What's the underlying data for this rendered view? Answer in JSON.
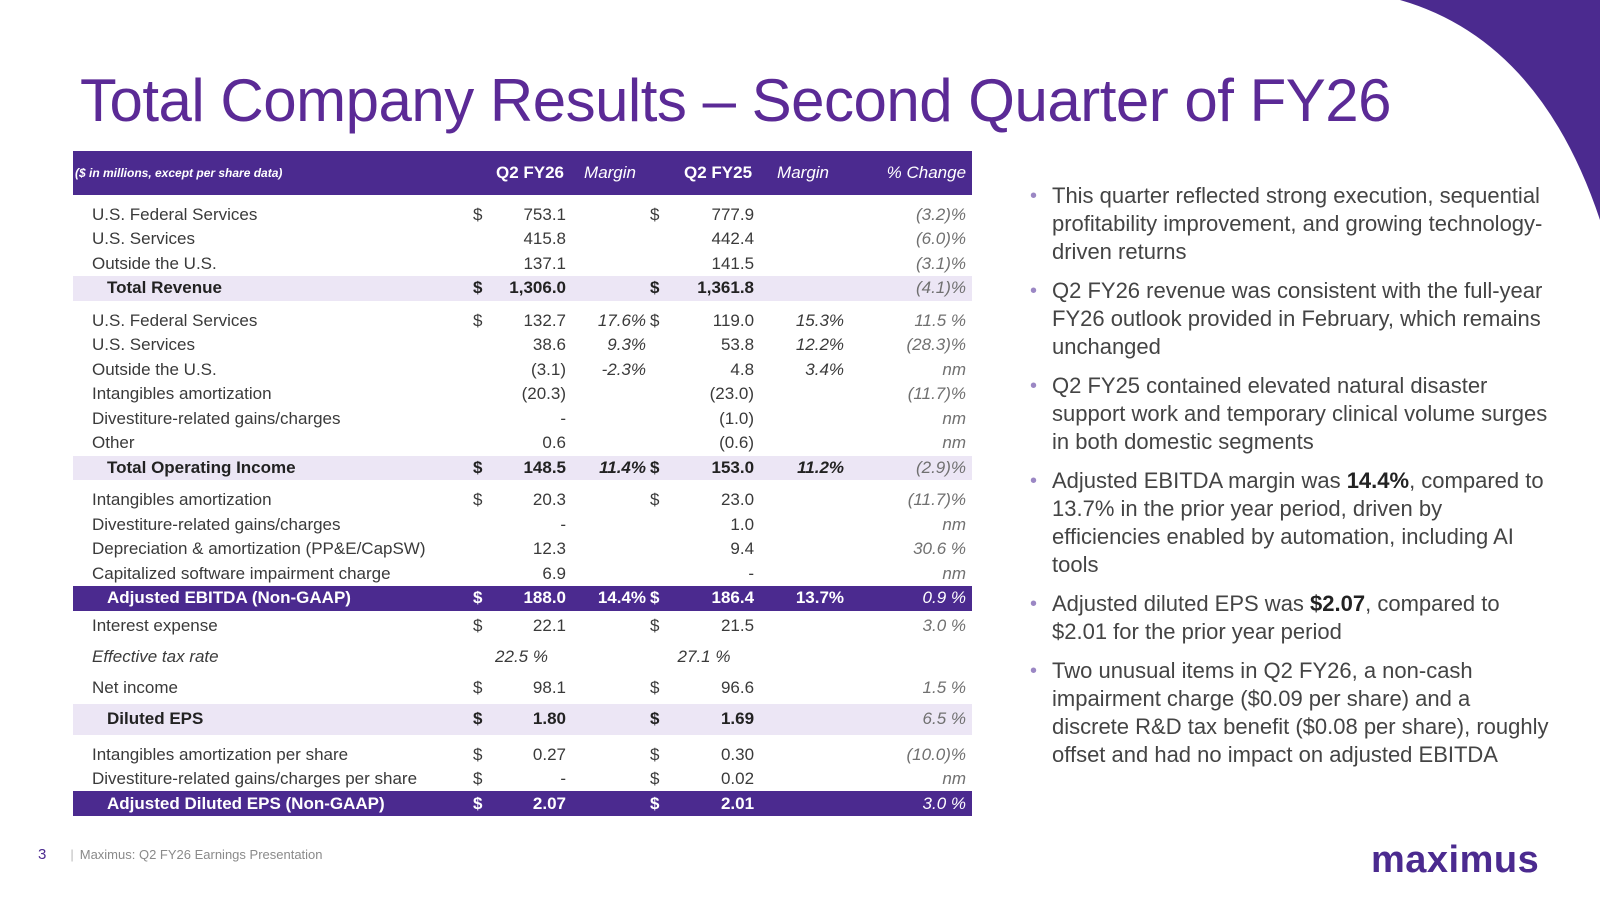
{
  "title": "Total Company Results – Second Quarter of FY26",
  "table": {
    "header": {
      "label": "($ in millions, except per share data)",
      "q2fy26": "Q2 FY26",
      "margin1": "Margin",
      "q2fy25": "Q2 FY25",
      "margin2": "Margin",
      "change": "% Change"
    },
    "rows": [
      {
        "label": "U.S. Federal Services",
        "d1": "$",
        "v1": "753.1",
        "m1": "",
        "d2": "$",
        "v2": "777.9",
        "m2": "",
        "chg": "(3.2)%"
      },
      {
        "label": "U.S. Services",
        "d1": "",
        "v1": "415.8",
        "m1": "",
        "d2": "",
        "v2": "442.4",
        "m2": "",
        "chg": "(6.0)%"
      },
      {
        "label": "Outside the U.S.",
        "d1": "",
        "v1": "137.1",
        "m1": "",
        "d2": "",
        "v2": "141.5",
        "m2": "",
        "chg": "(3.1)%"
      },
      {
        "label": "Total Revenue",
        "d1": "$",
        "v1": "1,306.0",
        "m1": "",
        "d2": "$",
        "v2": "1,361.8",
        "m2": "",
        "chg": "(4.1)%"
      },
      {
        "label": "U.S. Federal Services",
        "d1": "$",
        "v1": "132.7",
        "m1": "17.6%",
        "d2": "$",
        "v2": "119.0",
        "m2": "15.3%",
        "chg": "11.5 %"
      },
      {
        "label": "U.S. Services",
        "d1": "",
        "v1": "38.6",
        "m1": "9.3%",
        "d2": "",
        "v2": "53.8",
        "m2": "12.2%",
        "chg": "(28.3)%"
      },
      {
        "label": "Outside the U.S.",
        "d1": "",
        "v1": "(3.1)",
        "m1": "-2.3%",
        "d2": "",
        "v2": "4.8",
        "m2": "3.4%",
        "chg": "nm"
      },
      {
        "label": "Intangibles amortization",
        "d1": "",
        "v1": "(20.3)",
        "m1": "",
        "d2": "",
        "v2": "(23.0)",
        "m2": "",
        "chg": "(11.7)%"
      },
      {
        "label": "Divestiture-related gains/charges",
        "d1": "",
        "v1": "-",
        "m1": "",
        "d2": "",
        "v2": "(1.0)",
        "m2": "",
        "chg": "nm"
      },
      {
        "label": "Other",
        "d1": "",
        "v1": "0.6",
        "m1": "",
        "d2": "",
        "v2": "(0.6)",
        "m2": "",
        "chg": "nm"
      },
      {
        "label": "Total Operating Income",
        "d1": "$",
        "v1": "148.5",
        "m1": "11.4%",
        "d2": "$",
        "v2": "153.0",
        "m2": "11.2%",
        "chg": "(2.9)%"
      },
      {
        "label": "Intangibles amortization",
        "d1": "$",
        "v1": "20.3",
        "m1": "",
        "d2": "$",
        "v2": "23.0",
        "m2": "",
        "chg": "(11.7)%"
      },
      {
        "label": "Divestiture-related gains/charges",
        "d1": "",
        "v1": "-",
        "m1": "",
        "d2": "",
        "v2": "1.0",
        "m2": "",
        "chg": "nm"
      },
      {
        "label": "Depreciation & amortization (PP&E/CapSW)",
        "d1": "",
        "v1": "12.3",
        "m1": "",
        "d2": "",
        "v2": "9.4",
        "m2": "",
        "chg": "30.6 %"
      },
      {
        "label": "Capitalized software impairment charge",
        "d1": "",
        "v1": "6.9",
        "m1": "",
        "d2": "",
        "v2": "-",
        "m2": "",
        "chg": "nm"
      },
      {
        "label": "Adjusted EBITDA (Non-GAAP)",
        "d1": "$",
        "v1": "188.0",
        "m1": "14.4%",
        "d2": "$",
        "v2": "186.4",
        "m2": "13.7%",
        "chg": "0.9 %"
      },
      {
        "label": "Interest expense",
        "d1": "$",
        "v1": "22.1",
        "m1": "",
        "d2": "$",
        "v2": "21.5",
        "m2": "",
        "chg": "3.0 %"
      },
      {
        "label": "Effective tax rate",
        "v1": "22.5 %",
        "v2": "27.1 %"
      },
      {
        "label": "Net income",
        "d1": "$",
        "v1": "98.1",
        "m1": "",
        "d2": "$",
        "v2": "96.6",
        "m2": "",
        "chg": "1.5 %"
      },
      {
        "label": "Diluted EPS",
        "d1": "$",
        "v1": "1.80",
        "m1": "",
        "d2": "$",
        "v2": "1.69",
        "m2": "",
        "chg": "6.5 %"
      },
      {
        "label": "Intangibles amortization per share",
        "d1": "$",
        "v1": "0.27",
        "m1": "",
        "d2": "$",
        "v2": "0.30",
        "m2": "",
        "chg": "(10.0)%"
      },
      {
        "label": "Divestiture-related gains/charges per share",
        "d1": "$",
        "v1": "-",
        "m1": "",
        "d2": "$",
        "v2": "0.02",
        "m2": "",
        "chg": "nm"
      },
      {
        "label": "Adjusted Diluted EPS (Non-GAAP)",
        "d1": "$",
        "v1": "2.07",
        "m1": "",
        "d2": "$",
        "v2": "2.01",
        "m2": "",
        "chg": "3.0 %"
      }
    ]
  },
  "bullets": [
    {
      "pre": "This quarter reflected strong execution, sequential profitability improvement, and growing technology-driven returns",
      "bold": "",
      "post": ""
    },
    {
      "pre": "Q2 FY26 revenue was consistent with the full-year FY26 outlook provided in February, which remains unchanged",
      "bold": "",
      "post": ""
    },
    {
      "pre": "Q2 FY25 contained elevated natural disaster support work and temporary clinical volume surges in both domestic segments",
      "bold": "",
      "post": ""
    },
    {
      "pre": "Adjusted EBITDA margin was ",
      "bold": "14.4%",
      "post": ", compared to 13.7% in the prior year period, driven by efficiencies enabled by automation, including AI tools"
    },
    {
      "pre": "Adjusted diluted EPS was ",
      "bold": "$2.07",
      "post": ", compared to $2.01 for the prior year period"
    },
    {
      "pre": "Two unusual items in Q2 FY26, a non-cash impairment charge ($0.09 per share) and a discrete R&D tax benefit ($0.08 per share), roughly offset and had no impact on adjusted EBITDA",
      "bold": "",
      "post": ""
    }
  ],
  "bullet_glyph": "•",
  "footer": {
    "page": "3",
    "separator": "|",
    "text": "Maximus: Q2 FY26 Earnings Presentation"
  },
  "logo": "maximus",
  "colors": {
    "brand_purple": "#4b2a8f",
    "title_purple": "#5b2a96",
    "highlight_lavender": "#ece6f5"
  }
}
